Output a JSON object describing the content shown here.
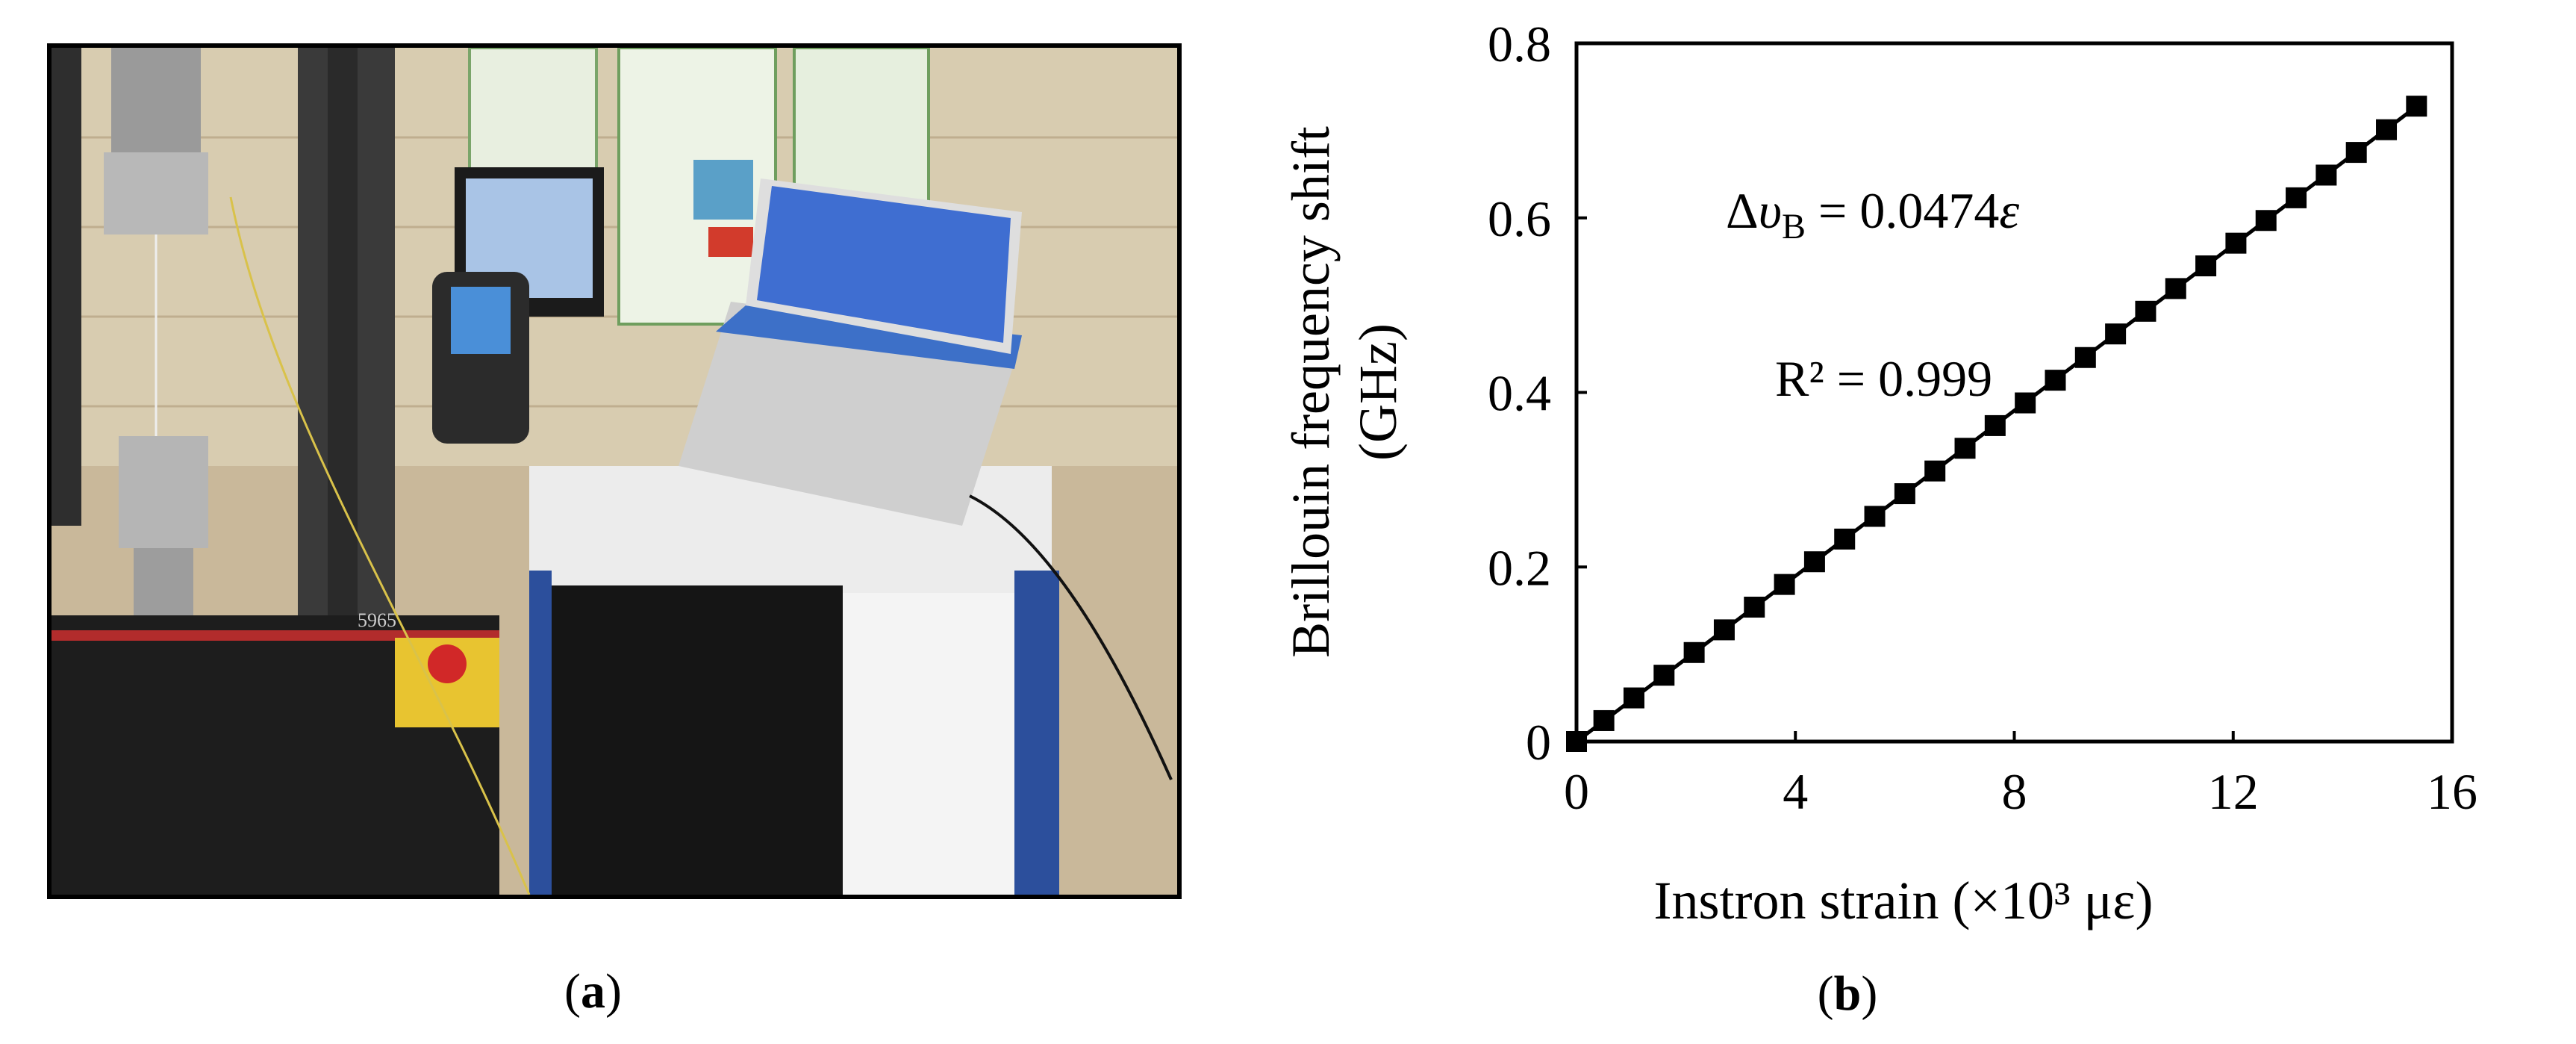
{
  "figure": {
    "panel_a_label": "a",
    "panel_b_label": "b"
  },
  "photo": {
    "description_name": "lab-test-setup-photo",
    "instrument_label": "5965"
  },
  "chart_data": {
    "type": "scatter",
    "title": "",
    "xlabel": "Instron strain (×10³ με)",
    "ylabel_line1": "Brillouin frequency shift",
    "ylabel_line2": "(GHz)",
    "xlim": [
      0,
      16
    ],
    "ylim": [
      0,
      0.8
    ],
    "xticks": [
      0,
      4,
      8,
      12,
      16
    ],
    "yticks": [
      0,
      0.2,
      0.4,
      0.6,
      0.8
    ],
    "ytick_labels": [
      "0",
      "0.2",
      "0.4",
      "0.6",
      "0.8"
    ],
    "xtick_labels": [
      "0",
      "4",
      "8",
      "12",
      "16"
    ],
    "grid": false,
    "legend": "none",
    "marker": "square",
    "marker_color": "#000000",
    "fit_line": {
      "slope": 0.0474,
      "intercept": 0,
      "x_range": [
        0,
        15.3
      ]
    },
    "annotations": {
      "equation": "Δυ_B = 0.0474ε",
      "equation_prefix": "Δ",
      "equation_var": "υ",
      "equation_sub": "B",
      "equation_rest": " = 0.0474",
      "equation_eps": "ε",
      "r2": "R² = 0.999"
    },
    "series": [
      {
        "x": [
          0,
          0.5,
          1.05,
          1.6,
          2.15,
          2.7,
          3.25,
          3.8,
          4.35,
          4.9,
          5.45,
          6.0,
          6.55,
          7.1,
          7.65,
          8.2,
          8.75,
          9.3,
          9.85,
          10.4,
          10.95,
          11.5,
          12.05,
          12.6,
          13.15,
          13.7,
          14.25,
          14.8,
          15.35
        ],
        "y": [
          0,
          0.024,
          0.05,
          0.076,
          0.102,
          0.128,
          0.154,
          0.18,
          0.206,
          0.232,
          0.258,
          0.284,
          0.31,
          0.336,
          0.362,
          0.388,
          0.414,
          0.44,
          0.467,
          0.493,
          0.519,
          0.545,
          0.571,
          0.597,
          0.623,
          0.649,
          0.675,
          0.701,
          0.728
        ]
      }
    ]
  }
}
